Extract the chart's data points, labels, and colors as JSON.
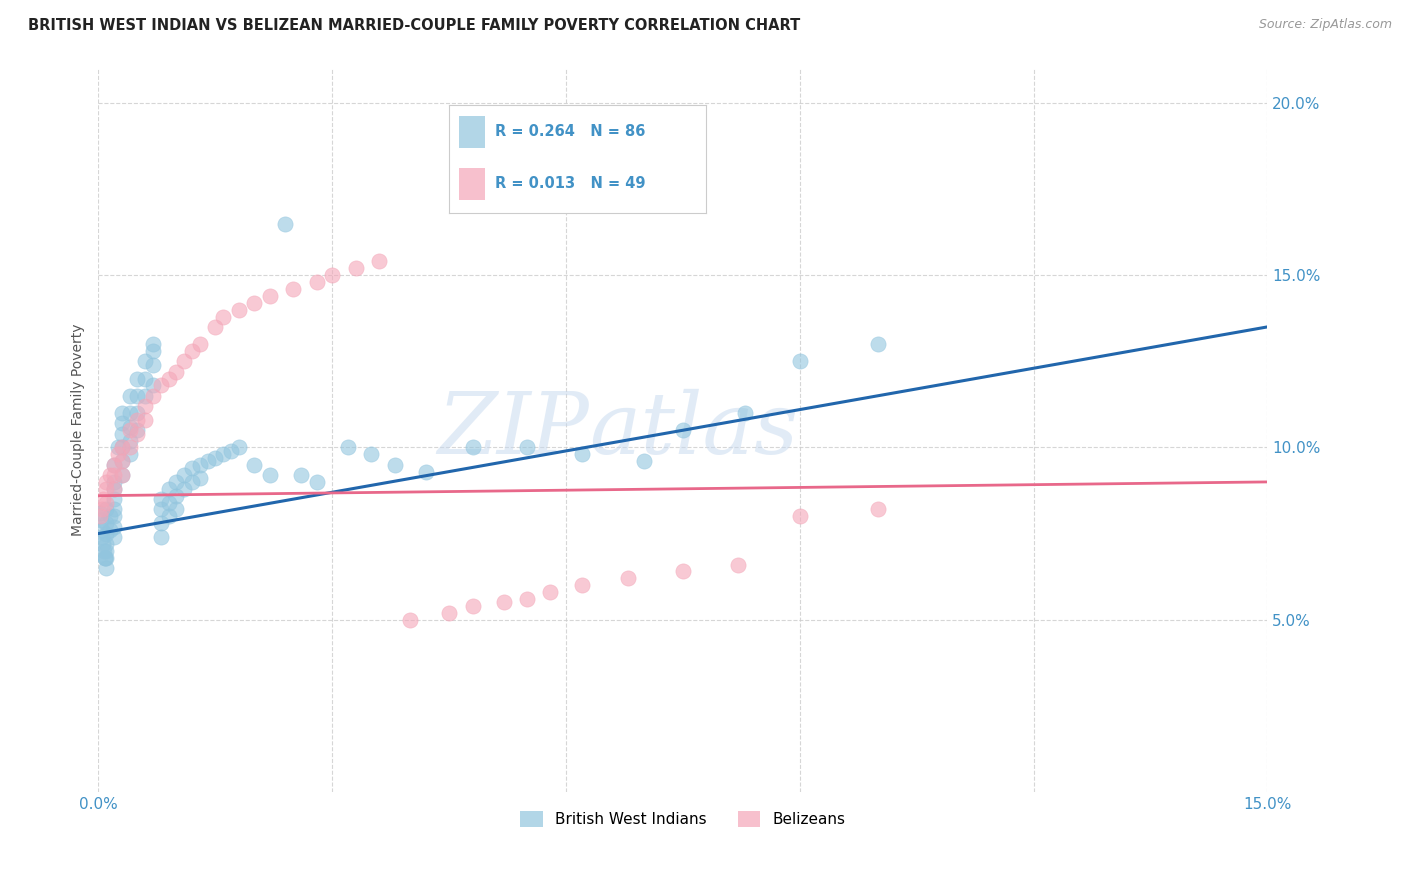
{
  "title": "BRITISH WEST INDIAN VS BELIZEAN MARRIED-COUPLE FAMILY POVERTY CORRELATION CHART",
  "source": "Source: ZipAtlas.com",
  "ylabel": "Married-Couple Family Poverty",
  "xlim": [
    0.0,
    0.15
  ],
  "ylim": [
    0.0,
    0.21
  ],
  "xtick_vals": [
    0.0,
    0.03,
    0.06,
    0.09,
    0.12,
    0.15
  ],
  "xtick_labels": [
    "0.0%",
    "",
    "",
    "",
    "",
    "15.0%"
  ],
  "ytick_vals": [
    0.05,
    0.1,
    0.15,
    0.2
  ],
  "ytick_labels": [
    "5.0%",
    "10.0%",
    "15.0%",
    "20.0%"
  ],
  "watermark_zip": "ZIP",
  "watermark_atlas": "atlas",
  "legend_labels": [
    "British West Indians",
    "Belizeans"
  ],
  "R_bwi": 0.264,
  "N_bwi": 86,
  "R_bel": 0.013,
  "N_bel": 49,
  "color_bwi": "#92c5de",
  "color_bel": "#f4a6b8",
  "trendline_bwi_color": "#2166ac",
  "trendline_bel_color": "#e8688a",
  "background_color": "#ffffff",
  "grid_color": "#cccccc",
  "bwi_x": [
    0.0002,
    0.0003,
    0.0004,
    0.0005,
    0.0006,
    0.0007,
    0.0008,
    0.0009,
    0.001,
    0.001,
    0.001,
    0.001,
    0.001,
    0.001,
    0.001,
    0.0015,
    0.0015,
    0.002,
    0.002,
    0.002,
    0.002,
    0.002,
    0.002,
    0.002,
    0.002,
    0.0025,
    0.003,
    0.003,
    0.003,
    0.003,
    0.003,
    0.003,
    0.004,
    0.004,
    0.004,
    0.004,
    0.004,
    0.005,
    0.005,
    0.005,
    0.005,
    0.006,
    0.006,
    0.006,
    0.007,
    0.007,
    0.007,
    0.007,
    0.008,
    0.008,
    0.008,
    0.008,
    0.009,
    0.009,
    0.009,
    0.01,
    0.01,
    0.01,
    0.011,
    0.011,
    0.012,
    0.012,
    0.013,
    0.013,
    0.014,
    0.015,
    0.016,
    0.017,
    0.018,
    0.02,
    0.022,
    0.024,
    0.026,
    0.028,
    0.032,
    0.035,
    0.038,
    0.042,
    0.048,
    0.055,
    0.062,
    0.07,
    0.075,
    0.083,
    0.09,
    0.1
  ],
  "bwi_y": [
    0.081,
    0.079,
    0.076,
    0.074,
    0.072,
    0.07,
    0.068,
    0.068,
    0.082,
    0.078,
    0.075,
    0.072,
    0.07,
    0.068,
    0.065,
    0.08,
    0.076,
    0.095,
    0.09,
    0.088,
    0.085,
    0.082,
    0.08,
    0.077,
    0.074,
    0.1,
    0.11,
    0.107,
    0.104,
    0.1,
    0.096,
    0.092,
    0.115,
    0.11,
    0.106,
    0.102,
    0.098,
    0.12,
    0.115,
    0.11,
    0.105,
    0.125,
    0.12,
    0.115,
    0.13,
    0.128,
    0.124,
    0.118,
    0.085,
    0.082,
    0.078,
    0.074,
    0.088,
    0.084,
    0.08,
    0.09,
    0.086,
    0.082,
    0.092,
    0.088,
    0.094,
    0.09,
    0.095,
    0.091,
    0.096,
    0.097,
    0.098,
    0.099,
    0.1,
    0.095,
    0.092,
    0.165,
    0.092,
    0.09,
    0.1,
    0.098,
    0.095,
    0.093,
    0.1,
    0.1,
    0.098,
    0.096,
    0.105,
    0.11,
    0.125,
    0.13
  ],
  "bel_x": [
    0.0002,
    0.0004,
    0.0006,
    0.001,
    0.001,
    0.001,
    0.0015,
    0.002,
    0.002,
    0.002,
    0.0025,
    0.003,
    0.003,
    0.003,
    0.004,
    0.004,
    0.005,
    0.005,
    0.006,
    0.006,
    0.007,
    0.008,
    0.009,
    0.01,
    0.011,
    0.012,
    0.013,
    0.015,
    0.016,
    0.018,
    0.02,
    0.022,
    0.025,
    0.028,
    0.03,
    0.033,
    0.036,
    0.04,
    0.045,
    0.048,
    0.052,
    0.055,
    0.058,
    0.062,
    0.068,
    0.075,
    0.082,
    0.09,
    0.1
  ],
  "bel_y": [
    0.08,
    0.082,
    0.085,
    0.09,
    0.088,
    0.084,
    0.092,
    0.095,
    0.092,
    0.088,
    0.098,
    0.1,
    0.096,
    0.092,
    0.105,
    0.1,
    0.108,
    0.104,
    0.112,
    0.108,
    0.115,
    0.118,
    0.12,
    0.122,
    0.125,
    0.128,
    0.13,
    0.135,
    0.138,
    0.14,
    0.142,
    0.144,
    0.146,
    0.148,
    0.15,
    0.152,
    0.154,
    0.05,
    0.052,
    0.054,
    0.055,
    0.056,
    0.058,
    0.06,
    0.062,
    0.064,
    0.066,
    0.08,
    0.082
  ],
  "bwi_trend_x0": 0.0,
  "bwi_trend_y0": 0.075,
  "bwi_trend_x1": 0.15,
  "bwi_trend_y1": 0.135,
  "bel_trend_x0": 0.0,
  "bel_trend_y0": 0.086,
  "bel_trend_x1": 0.15,
  "bel_trend_y1": 0.09
}
